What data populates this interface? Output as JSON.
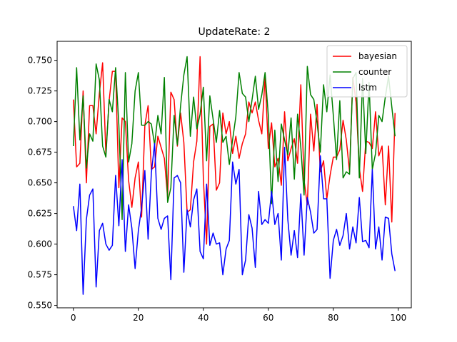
{
  "chart_data": {
    "type": "line",
    "title": "UpdateRate: 2",
    "xlabel": "",
    "ylabel": "",
    "xlim": [
      -5,
      104
    ],
    "ylim": [
      0.548,
      0.7655
    ],
    "xticks": [
      0,
      20,
      40,
      60,
      80,
      100
    ],
    "xtick_labels": [
      "0",
      "20",
      "40",
      "60",
      "80",
      "100"
    ],
    "yticks": [
      0.55,
      0.575,
      0.6,
      0.625,
      0.65,
      0.675,
      0.7,
      0.725,
      0.75
    ],
    "ytick_labels": [
      "0.550",
      "0.575",
      "0.600",
      "0.625",
      "0.650",
      "0.675",
      "0.700",
      "0.725",
      "0.750"
    ],
    "grid": false,
    "legend": {
      "position": "top-right"
    },
    "x": [
      0,
      1,
      2,
      3,
      4,
      5,
      6,
      7,
      8,
      9,
      10,
      11,
      12,
      13,
      14,
      15,
      16,
      17,
      18,
      19,
      20,
      21,
      22,
      23,
      24,
      25,
      26,
      27,
      28,
      29,
      30,
      31,
      32,
      33,
      34,
      35,
      36,
      37,
      38,
      39,
      40,
      41,
      42,
      43,
      44,
      45,
      46,
      47,
      48,
      49,
      50,
      51,
      52,
      53,
      54,
      55,
      56,
      57,
      58,
      59,
      60,
      61,
      62,
      63,
      64,
      65,
      66,
      67,
      68,
      69,
      70,
      71,
      72,
      73,
      74,
      75,
      76,
      77,
      78,
      79,
      80,
      81,
      82,
      83,
      84,
      85,
      86,
      87,
      88,
      89,
      90,
      91,
      92,
      93,
      94,
      95,
      96,
      97,
      98,
      99
    ],
    "series": [
      {
        "name": "bayesian",
        "color": "#ff0000",
        "values": [
          0.718,
          0.663,
          0.666,
          0.725,
          0.65,
          0.713,
          0.713,
          0.69,
          0.723,
          0.748,
          0.674,
          0.717,
          0.741,
          0.741,
          0.646,
          0.703,
          0.7,
          0.652,
          0.63,
          0.654,
          0.667,
          0.622,
          0.697,
          0.713,
          0.661,
          0.663,
          0.688,
          0.679,
          0.67,
          0.638,
          0.724,
          0.718,
          0.68,
          0.707,
          0.683,
          0.626,
          0.628,
          0.667,
          0.684,
          0.753,
          0.654,
          0.6,
          0.696,
          0.698,
          0.644,
          0.65,
          0.707,
          0.69,
          0.7,
          0.674,
          0.688,
          0.67,
          0.682,
          0.69,
          0.716,
          0.707,
          0.716,
          0.701,
          0.69,
          0.737,
          0.678,
          0.699,
          0.663,
          0.67,
          0.648,
          0.708,
          0.668,
          0.678,
          0.686,
          0.666,
          0.73,
          0.652,
          0.632,
          0.706,
          0.676,
          0.714,
          0.659,
          0.668,
          0.637,
          0.656,
          0.671,
          0.671,
          0.677,
          0.701,
          0.685,
          0.659,
          0.736,
          0.716,
          0.662,
          0.643,
          0.684,
          0.683,
          0.678,
          0.708,
          0.672,
          0.68,
          0.632,
          0.68,
          0.618,
          0.707
        ]
      },
      {
        "name": "counter",
        "color": "#008000",
        "values": [
          0.68,
          0.744,
          0.685,
          0.721,
          0.662,
          0.69,
          0.684,
          0.747,
          0.734,
          0.68,
          0.671,
          0.718,
          0.708,
          0.744,
          0.697,
          0.62,
          0.74,
          0.667,
          0.682,
          0.725,
          0.74,
          0.697,
          0.697,
          0.7,
          0.698,
          0.681,
          0.705,
          0.69,
          0.736,
          0.634,
          0.646,
          0.705,
          0.681,
          0.713,
          0.738,
          0.753,
          0.688,
          0.72,
          0.694,
          0.706,
          0.728,
          0.668,
          0.721,
          0.702,
          0.683,
          0.709,
          0.683,
          0.688,
          0.665,
          0.685,
          0.704,
          0.74,
          0.723,
          0.72,
          0.7,
          0.718,
          0.737,
          0.71,
          0.722,
          0.74,
          0.705,
          0.633,
          0.693,
          0.651,
          0.698,
          0.685,
          0.673,
          0.703,
          0.653,
          0.706,
          0.679,
          0.64,
          0.745,
          0.722,
          0.718,
          0.699,
          0.675,
          0.73,
          0.708,
          0.738,
          0.705,
          0.669,
          0.717,
          0.654,
          0.659,
          0.657,
          0.735,
          0.74,
          0.654,
          0.735,
          0.674,
          0.732,
          0.661,
          0.674,
          0.705,
          0.7,
          0.72,
          0.737,
          0.712,
          0.688
        ]
      },
      {
        "name": "lstm",
        "color": "#0000ff",
        "values": [
          0.631,
          0.611,
          0.649,
          0.559,
          0.62,
          0.64,
          0.645,
          0.565,
          0.611,
          0.617,
          0.6,
          0.595,
          0.599,
          0.656,
          0.615,
          0.669,
          0.594,
          0.632,
          0.613,
          0.58,
          0.611,
          0.63,
          0.66,
          0.604,
          0.658,
          0.682,
          0.621,
          0.612,
          0.621,
          0.623,
          0.571,
          0.654,
          0.656,
          0.65,
          0.577,
          0.628,
          0.614,
          0.636,
          0.645,
          0.594,
          0.588,
          0.649,
          0.599,
          0.609,
          0.6,
          0.601,
          0.575,
          0.596,
          0.603,
          0.667,
          0.649,
          0.661,
          0.575,
          0.587,
          0.624,
          0.613,
          0.581,
          0.643,
          0.616,
          0.62,
          0.617,
          0.643,
          0.616,
          0.625,
          0.587,
          0.679,
          0.62,
          0.591,
          0.611,
          0.589,
          0.641,
          0.591,
          0.638,
          0.626,
          0.609,
          0.612,
          0.672,
          0.637,
          0.637,
          0.572,
          0.603,
          0.612,
          0.599,
          0.607,
          0.625,
          0.596,
          0.614,
          0.601,
          0.638,
          0.602,
          0.603,
          0.597,
          0.661,
          0.596,
          0.614,
          0.587,
          0.622,
          0.621,
          0.592,
          0.578
        ]
      }
    ]
  }
}
